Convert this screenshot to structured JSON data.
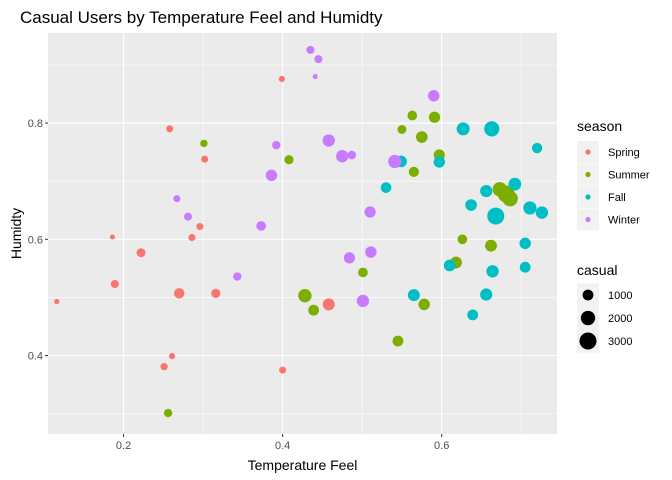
{
  "chart_data": {
    "type": "scatter",
    "title": "Casual Users by Temperature Feel and Humidty",
    "xlabel": "Temperature Feel",
    "ylabel": "Humidty",
    "xlim": [
      0.105,
      0.745
    ],
    "ylim": [
      0.265,
      0.955
    ],
    "x_ticks": [
      0.2,
      0.4,
      0.6
    ],
    "y_ticks": [
      0.4,
      0.6,
      0.8
    ],
    "x_tick_labels": [
      "0.2",
      "0.4",
      "0.6"
    ],
    "y_tick_labels": [
      "0.4",
      "0.6",
      "0.8"
    ],
    "grid": true,
    "panel_background": "#ebebeb",
    "grid_color": "#ffffff",
    "legend": {
      "position": "right",
      "color_title": "season",
      "size_title": "casual",
      "size_breaks": [
        1000,
        2000,
        3000
      ],
      "size_labels": [
        "1000",
        "2000",
        "3000"
      ]
    },
    "seasons": [
      {
        "name": "Spring",
        "color": "#f8766d"
      },
      {
        "name": "Summer",
        "color": "#7cae00"
      },
      {
        "name": "Fall",
        "color": "#00bfc4"
      },
      {
        "name": "Winter",
        "color": "#c77cff"
      }
    ],
    "series": [
      {
        "name": "Spring",
        "points": [
          {
            "x": 0.116,
            "y": 0.493,
            "casual": 120
          },
          {
            "x": 0.186,
            "y": 0.604,
            "casual": 100
          },
          {
            "x": 0.189,
            "y": 0.523,
            "casual": 450
          },
          {
            "x": 0.222,
            "y": 0.577,
            "casual": 600
          },
          {
            "x": 0.251,
            "y": 0.381,
            "casual": 350
          },
          {
            "x": 0.258,
            "y": 0.79,
            "casual": 300
          },
          {
            "x": 0.261,
            "y": 0.399,
            "casual": 200
          },
          {
            "x": 0.27,
            "y": 0.507,
            "casual": 900
          },
          {
            "x": 0.286,
            "y": 0.603,
            "casual": 300
          },
          {
            "x": 0.296,
            "y": 0.622,
            "casual": 300
          },
          {
            "x": 0.302,
            "y": 0.738,
            "casual": 300
          },
          {
            "x": 0.316,
            "y": 0.507,
            "casual": 650
          },
          {
            "x": 0.399,
            "y": 0.876,
            "casual": 200
          },
          {
            "x": 0.4,
            "y": 0.375,
            "casual": 300
          },
          {
            "x": 0.458,
            "y": 0.488,
            "casual": 1300
          }
        ]
      },
      {
        "name": "Summer",
        "points": [
          {
            "x": 0.256,
            "y": 0.301,
            "casual": 500
          },
          {
            "x": 0.301,
            "y": 0.765,
            "casual": 350
          },
          {
            "x": 0.408,
            "y": 0.737,
            "casual": 650
          },
          {
            "x": 0.428,
            "y": 0.503,
            "casual": 1700
          },
          {
            "x": 0.439,
            "y": 0.478,
            "casual": 1000
          },
          {
            "x": 0.501,
            "y": 0.543,
            "casual": 750
          },
          {
            "x": 0.545,
            "y": 0.425,
            "casual": 1000
          },
          {
            "x": 0.55,
            "y": 0.789,
            "casual": 600
          },
          {
            "x": 0.563,
            "y": 0.813,
            "casual": 750
          },
          {
            "x": 0.565,
            "y": 0.716,
            "casual": 850
          },
          {
            "x": 0.575,
            "y": 0.776,
            "casual": 1200
          },
          {
            "x": 0.578,
            "y": 0.488,
            "casual": 1150
          },
          {
            "x": 0.591,
            "y": 0.81,
            "casual": 1100
          },
          {
            "x": 0.597,
            "y": 0.745,
            "casual": 1100
          },
          {
            "x": 0.618,
            "y": 0.56,
            "casual": 1250
          },
          {
            "x": 0.626,
            "y": 0.6,
            "casual": 750
          },
          {
            "x": 0.662,
            "y": 0.589,
            "casual": 1250
          },
          {
            "x": 0.673,
            "y": 0.686,
            "casual": 2000
          },
          {
            "x": 0.681,
            "y": 0.678,
            "casual": 3000
          },
          {
            "x": 0.686,
            "y": 0.67,
            "casual": 2400
          }
        ]
      },
      {
        "name": "Fall",
        "points": [
          {
            "x": 0.53,
            "y": 0.689,
            "casual": 950
          },
          {
            "x": 0.549,
            "y": 0.734,
            "casual": 1200
          },
          {
            "x": 0.565,
            "y": 0.504,
            "casual": 1300
          },
          {
            "x": 0.597,
            "y": 0.733,
            "casual": 1150
          },
          {
            "x": 0.61,
            "y": 0.555,
            "casual": 1200
          },
          {
            "x": 0.627,
            "y": 0.79,
            "casual": 1600
          },
          {
            "x": 0.637,
            "y": 0.659,
            "casual": 1200
          },
          {
            "x": 0.639,
            "y": 0.47,
            "casual": 1000
          },
          {
            "x": 0.656,
            "y": 0.683,
            "casual": 1350
          },
          {
            "x": 0.656,
            "y": 0.505,
            "casual": 1350
          },
          {
            "x": 0.663,
            "y": 0.79,
            "casual": 2300
          },
          {
            "x": 0.664,
            "y": 0.545,
            "casual": 1400
          },
          {
            "x": 0.668,
            "y": 0.64,
            "casual": 3000
          },
          {
            "x": 0.692,
            "y": 0.695,
            "casual": 1500
          },
          {
            "x": 0.705,
            "y": 0.593,
            "casual": 1150
          },
          {
            "x": 0.705,
            "y": 0.552,
            "casual": 1000
          },
          {
            "x": 0.711,
            "y": 0.654,
            "casual": 1650
          },
          {
            "x": 0.72,
            "y": 0.757,
            "casual": 900
          },
          {
            "x": 0.726,
            "y": 0.646,
            "casual": 1400
          }
        ]
      },
      {
        "name": "Winter",
        "points": [
          {
            "x": 0.267,
            "y": 0.67,
            "casual": 300
          },
          {
            "x": 0.281,
            "y": 0.639,
            "casual": 450
          },
          {
            "x": 0.343,
            "y": 0.536,
            "casual": 500
          },
          {
            "x": 0.373,
            "y": 0.623,
            "casual": 750
          },
          {
            "x": 0.386,
            "y": 0.71,
            "casual": 1150
          },
          {
            "x": 0.392,
            "y": 0.762,
            "casual": 500
          },
          {
            "x": 0.435,
            "y": 0.926,
            "casual": 450
          },
          {
            "x": 0.441,
            "y": 0.88,
            "casual": 100
          },
          {
            "x": 0.445,
            "y": 0.91,
            "casual": 450
          },
          {
            "x": 0.458,
            "y": 0.77,
            "casual": 1400
          },
          {
            "x": 0.475,
            "y": 0.743,
            "casual": 1400
          },
          {
            "x": 0.484,
            "y": 0.568,
            "casual": 1100
          },
          {
            "x": 0.487,
            "y": 0.745,
            "casual": 550
          },
          {
            "x": 0.501,
            "y": 0.494,
            "casual": 1400
          },
          {
            "x": 0.51,
            "y": 0.647,
            "casual": 1100
          },
          {
            "x": 0.511,
            "y": 0.578,
            "casual": 1150
          },
          {
            "x": 0.541,
            "y": 0.734,
            "casual": 1650
          },
          {
            "x": 0.59,
            "y": 0.847,
            "casual": 1150
          }
        ]
      }
    ]
  }
}
